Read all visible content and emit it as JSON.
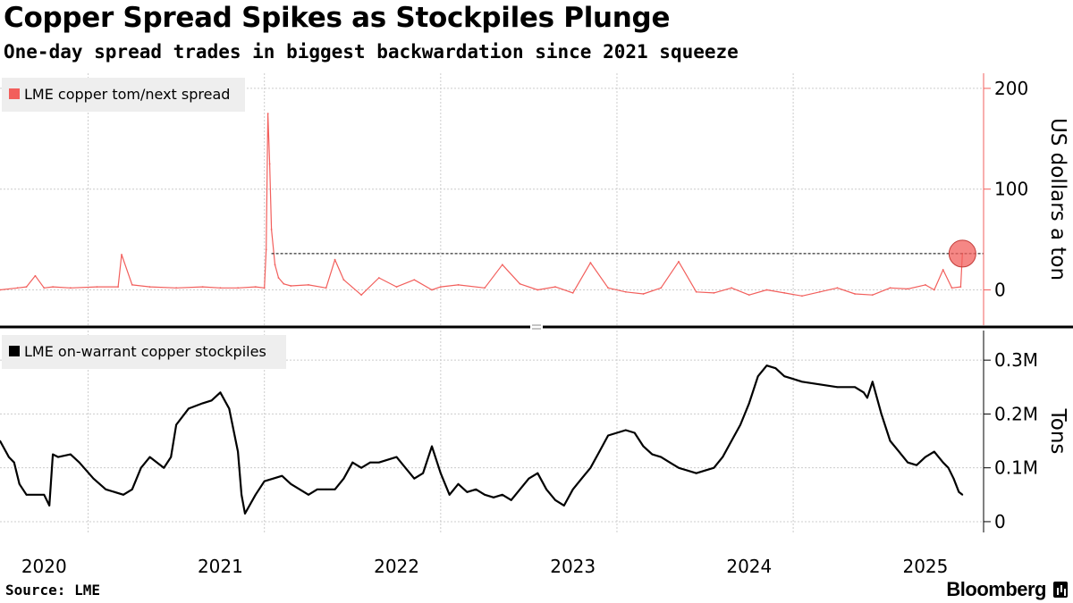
{
  "title": "Copper Spread Spikes as Stockpiles Plunge",
  "subtitle": "One-day spread trades in biggest backwardation since 2021 squeeze",
  "source": "Source: LME",
  "brand": "Bloomberg",
  "colors": {
    "spread": "#f25f5c",
    "stock": "#000000",
    "grid": "#cccccc",
    "legend_bg": "#eeeeee"
  },
  "chart_data": [
    {
      "type": "line",
      "legend": "LME copper tom/next spread",
      "ylabel": "US dollars a ton",
      "ylim": [
        -35,
        215
      ],
      "yticks": [
        0,
        100,
        200
      ],
      "ytick_labels": [
        "0",
        "100",
        "200"
      ],
      "x_years": [
        "2020",
        "2021",
        "2022",
        "2023",
        "2024",
        "2025"
      ],
      "reference_line": 36,
      "highlight": {
        "x": 2025.21,
        "y": 36
      },
      "x": [
        2019.75,
        2019.85,
        2019.9,
        2019.95,
        2020.0,
        2020.05,
        2020.15,
        2020.3,
        2020.42,
        2020.44,
        2020.5,
        2020.6,
        2020.75,
        2020.9,
        2021.0,
        2021.1,
        2021.2,
        2021.25,
        2021.26,
        2021.27,
        2021.28,
        2021.29,
        2021.31,
        2021.33,
        2021.36,
        2021.4,
        2021.5,
        2021.6,
        2021.65,
        2021.7,
        2021.8,
        2021.9,
        2022.0,
        2022.1,
        2022.2,
        2022.25,
        2022.35,
        2022.5,
        2022.6,
        2022.7,
        2022.8,
        2022.9,
        2023.0,
        2023.1,
        2023.2,
        2023.3,
        2023.4,
        2023.5,
        2023.6,
        2023.7,
        2023.8,
        2023.9,
        2024.0,
        2024.1,
        2024.2,
        2024.3,
        2024.4,
        2024.5,
        2024.6,
        2024.7,
        2024.8,
        2024.9,
        2025.0,
        2025.05,
        2025.1,
        2025.15,
        2025.2,
        2025.21
      ],
      "y": [
        0,
        2,
        3,
        14,
        2,
        3,
        2,
        3,
        3,
        35,
        5,
        3,
        2,
        3,
        2,
        2,
        3,
        2,
        40,
        175,
        125,
        60,
        25,
        12,
        6,
        4,
        5,
        2,
        30,
        10,
        -5,
        12,
        3,
        10,
        0,
        3,
        5,
        2,
        25,
        6,
        0,
        3,
        -3,
        27,
        2,
        -2,
        -4,
        2,
        28,
        -2,
        -3,
        2,
        -5,
        0,
        -3,
        -6,
        -2,
        2,
        -4,
        -5,
        2,
        1,
        5,
        0,
        20,
        2,
        3,
        36
      ]
    },
    {
      "type": "line",
      "legend": "LME on-warrant copper stockpiles",
      "ylabel": "Tons",
      "ylim": [
        -0.02,
        0.355
      ],
      "yticks": [
        0,
        0.1,
        0.2,
        0.3
      ],
      "ytick_labels": [
        "0",
        "0.1M",
        "0.2M",
        "0.3M"
      ],
      "x": [
        2019.75,
        2019.8,
        2019.83,
        2019.86,
        2019.9,
        2020.0,
        2020.03,
        2020.05,
        2020.08,
        2020.15,
        2020.2,
        2020.28,
        2020.35,
        2020.45,
        2020.5,
        2020.55,
        2020.6,
        2020.68,
        2020.72,
        2020.75,
        2020.82,
        2020.9,
        2020.95,
        2021.0,
        2021.05,
        2021.1,
        2021.12,
        2021.14,
        2021.2,
        2021.25,
        2021.3,
        2021.35,
        2021.4,
        2021.5,
        2021.55,
        2021.6,
        2021.65,
        2021.7,
        2021.75,
        2021.8,
        2021.85,
        2021.9,
        2022.0,
        2022.05,
        2022.1,
        2022.15,
        2022.2,
        2022.25,
        2022.3,
        2022.35,
        2022.4,
        2022.45,
        2022.5,
        2022.55,
        2022.6,
        2022.65,
        2022.75,
        2022.8,
        2022.85,
        2022.9,
        2022.95,
        2023.0,
        2023.05,
        2023.1,
        2023.15,
        2023.2,
        2023.3,
        2023.35,
        2023.4,
        2023.45,
        2023.5,
        2023.55,
        2023.6,
        2023.7,
        2023.75,
        2023.8,
        2023.85,
        2023.9,
        2023.95,
        2024.0,
        2024.05,
        2024.1,
        2024.15,
        2024.2,
        2024.25,
        2024.3,
        2024.4,
        2024.5,
        2024.6,
        2024.65,
        2024.67,
        2024.7,
        2024.75,
        2024.8,
        2024.85,
        2024.9,
        2024.95,
        2025.0,
        2025.05,
        2025.1,
        2025.13,
        2025.16,
        2025.19,
        2025.21
      ],
      "y": [
        0.15,
        0.12,
        0.11,
        0.07,
        0.05,
        0.05,
        0.03,
        0.125,
        0.12,
        0.125,
        0.11,
        0.08,
        0.06,
        0.05,
        0.06,
        0.1,
        0.12,
        0.1,
        0.12,
        0.18,
        0.21,
        0.22,
        0.225,
        0.24,
        0.21,
        0.13,
        0.05,
        0.015,
        0.05,
        0.075,
        0.08,
        0.085,
        0.07,
        0.05,
        0.06,
        0.06,
        0.06,
        0.08,
        0.11,
        0.1,
        0.11,
        0.11,
        0.12,
        0.1,
        0.08,
        0.09,
        0.14,
        0.09,
        0.05,
        0.07,
        0.055,
        0.06,
        0.05,
        0.045,
        0.05,
        0.04,
        0.08,
        0.09,
        0.06,
        0.04,
        0.03,
        0.06,
        0.08,
        0.1,
        0.13,
        0.16,
        0.17,
        0.165,
        0.14,
        0.125,
        0.12,
        0.11,
        0.1,
        0.09,
        0.095,
        0.1,
        0.12,
        0.15,
        0.18,
        0.22,
        0.27,
        0.29,
        0.285,
        0.27,
        0.265,
        0.26,
        0.255,
        0.25,
        0.25,
        0.24,
        0.23,
        0.26,
        0.2,
        0.15,
        0.13,
        0.11,
        0.105,
        0.12,
        0.13,
        0.11,
        0.1,
        0.08,
        0.055,
        0.05
      ]
    }
  ]
}
